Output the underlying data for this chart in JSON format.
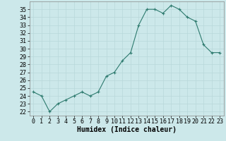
{
  "x": [
    0,
    1,
    2,
    3,
    4,
    5,
    6,
    7,
    8,
    9,
    10,
    11,
    12,
    13,
    14,
    15,
    16,
    17,
    18,
    19,
    20,
    21,
    22,
    23
  ],
  "y": [
    24.5,
    24.0,
    22.0,
    23.0,
    23.5,
    24.0,
    24.5,
    24.0,
    24.5,
    26.5,
    27.0,
    28.5,
    29.5,
    33.0,
    35.0,
    35.0,
    34.5,
    35.5,
    35.0,
    34.0,
    33.5,
    30.5,
    29.5,
    29.5
  ],
  "xlabel": "Humidex (Indice chaleur)",
  "ylim": [
    21.5,
    36.0
  ],
  "xlim": [
    -0.5,
    23.5
  ],
  "yticks": [
    22,
    23,
    24,
    25,
    26,
    27,
    28,
    29,
    30,
    31,
    32,
    33,
    34,
    35
  ],
  "xticks": [
    0,
    1,
    2,
    3,
    4,
    5,
    6,
    7,
    8,
    9,
    10,
    11,
    12,
    13,
    14,
    15,
    16,
    17,
    18,
    19,
    20,
    21,
    22,
    23
  ],
  "line_color": "#2d7a6e",
  "marker_color": "#2d7a6e",
  "bg_color": "#cce8ea",
  "grid_color": "#b8d8da",
  "label_fontsize": 7,
  "tick_fontsize": 6
}
